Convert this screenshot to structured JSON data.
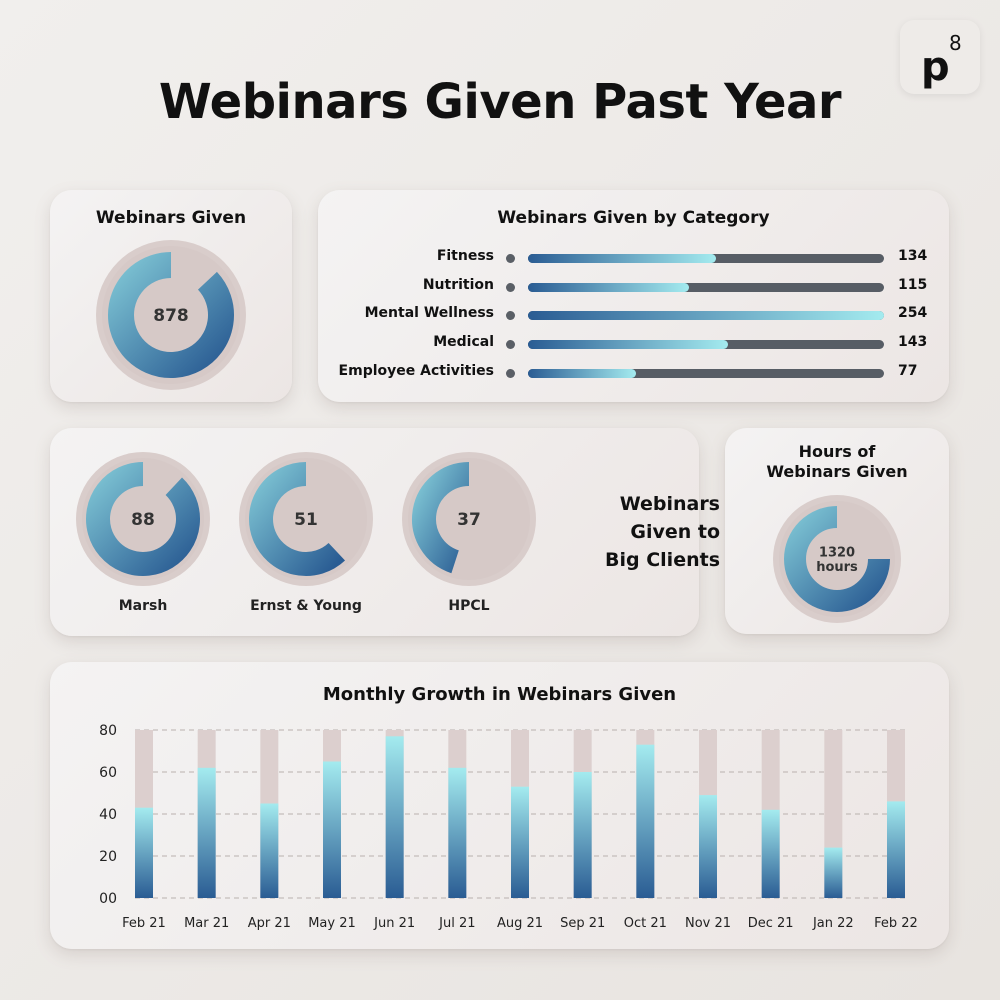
{
  "title": "Webinars Given Past Year",
  "logo": {
    "text": "p",
    "superscript": "8"
  },
  "webinars_given": {
    "title": "Webinars Given",
    "value": 878,
    "display": "878",
    "fraction": 0.87
  },
  "by_category": {
    "title": "Webinars Given by Category",
    "max": 254,
    "items": [
      {
        "label": "Fitness",
        "value": 134,
        "display": "134"
      },
      {
        "label": "Nutrition",
        "value": 115,
        "display": "115"
      },
      {
        "label": "Mental Wellness",
        "value": 254,
        "display": "254"
      },
      {
        "label": "Medical",
        "value": 143,
        "display": "143"
      },
      {
        "label": "Employee Activities",
        "value": 77,
        "display": "77"
      }
    ]
  },
  "big_clients": {
    "title_lines": [
      "Webinars",
      "Given to",
      "Big Clients"
    ],
    "items": [
      {
        "label": "Marsh",
        "value": 88,
        "display": "88",
        "fraction": 0.88
      },
      {
        "label": "Ernst & Young",
        "value": 51,
        "display": "51",
        "fraction": 0.62
      },
      {
        "label": "HPCL",
        "value": 37,
        "display": "37",
        "fraction": 0.45
      }
    ]
  },
  "hours": {
    "title_lines": [
      "Hours of",
      "Webinars Given"
    ],
    "value": 1320,
    "display_lines": [
      "1320",
      "hours"
    ],
    "fraction": 0.75
  },
  "chart_data": {
    "type": "bar",
    "title": "Monthly Growth in Webinars Given",
    "categories": [
      "Feb 21",
      "Mar 21",
      "Apr 21",
      "May 21",
      "Jun 21",
      "Jul 21",
      "Aug 21",
      "Sep 21",
      "Oct 21",
      "Nov 21",
      "Dec 21",
      "Jan 22",
      "Feb 22"
    ],
    "values": [
      43,
      62,
      45,
      65,
      77,
      62,
      53,
      60,
      73,
      49,
      42,
      24,
      46
    ],
    "ylim": [
      0,
      80
    ],
    "yticks": [
      0,
      20,
      40,
      60,
      80
    ],
    "ytick_labels": [
      "00",
      "20",
      "40",
      "60",
      "80"
    ],
    "grid": true
  },
  "colors": {
    "bar_top": "#a4ebef",
    "bar_bottom": "#2a5c93",
    "bar_background": "#dccfce",
    "track": "#575d65",
    "donut_bg": "#d9ccca"
  }
}
